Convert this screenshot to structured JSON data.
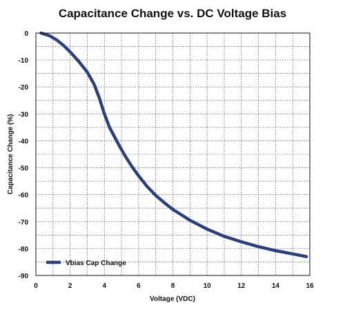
{
  "chart_data": {
    "type": "line",
    "title": "Capacitance Change vs. DC Voltage Bias",
    "xlabel": "Voltage (VDC)",
    "ylabel": "Capacitance Change (%)",
    "xlim": [
      0,
      16
    ],
    "ylim": [
      -90,
      0
    ],
    "xticks": [
      "0",
      "2",
      "4",
      "6",
      "8",
      "10",
      "12",
      "14",
      "16"
    ],
    "yticks": [
      "0",
      "-10",
      "-20",
      "-30",
      "-40",
      "-50",
      "-60",
      "-70",
      "-80",
      "-90"
    ],
    "grid": true,
    "legend_position": "bottom-left",
    "series": [
      {
        "name": "Vbias Cap Change",
        "color": "#2b3f7a",
        "x": [
          0.3,
          0.8,
          1.2,
          1.6,
          2.0,
          2.5,
          3.0,
          3.4,
          3.7,
          4.0,
          4.3,
          4.8,
          5.2,
          5.6,
          6.0,
          6.5,
          7.0,
          7.5,
          8.0,
          9.0,
          10.0,
          11.0,
          12.0,
          13.0,
          14.0,
          15.0,
          15.8
        ],
        "y": [
          0,
          -1,
          -2.5,
          -4.5,
          -7,
          -10.5,
          -14.5,
          -19,
          -24,
          -30,
          -35,
          -41,
          -45.5,
          -49.5,
          -53,
          -57,
          -60.3,
          -63,
          -65.5,
          -69.5,
          -72.8,
          -75.5,
          -77.5,
          -79.3,
          -80.8,
          -82,
          -83
        ]
      }
    ]
  }
}
